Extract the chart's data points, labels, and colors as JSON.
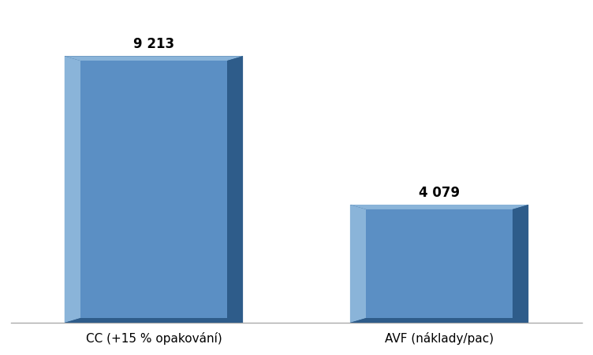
{
  "categories": [
    "CC (+15 % opakování)",
    "AVF (náklady/pac)"
  ],
  "values": [
    9213,
    4079
  ],
  "value_labels": [
    "9 213",
    "4 079"
  ],
  "bar_color_face": "#5b8fc4",
  "bar_color_light": "#8ab4d9",
  "bar_color_dark": "#2e5c8a",
  "bar_color_bottom": "#2a4f75",
  "background_color": "#ffffff",
  "text_color": "#000000",
  "label_fontsize": 11,
  "value_fontsize": 12,
  "ylim": [
    0,
    10800
  ],
  "bar_width": 0.5,
  "bevel": 0.035,
  "figure_width": 7.52,
  "figure_height": 4.52,
  "dpi": 100
}
